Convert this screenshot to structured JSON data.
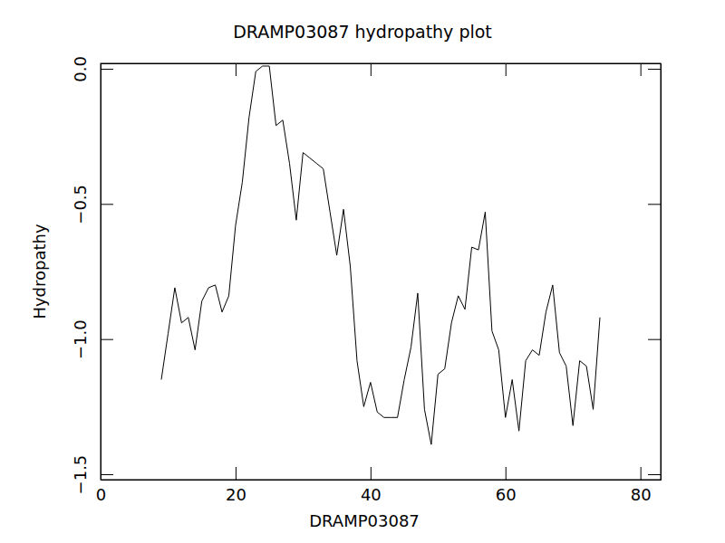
{
  "chart_data": {
    "type": "line",
    "title": "DRAMP03087 hydropathy plot",
    "x_label": "DRAMP03087",
    "y_label": "Hydropathy",
    "color": "#000000",
    "x": [
      9,
      10,
      11,
      12,
      13,
      14,
      15,
      16,
      17,
      18,
      19,
      20,
      21,
      22,
      23,
      24,
      25,
      26,
      27,
      28,
      29,
      30,
      31,
      32,
      33,
      34,
      35,
      36,
      37,
      38,
      39,
      40,
      41,
      42,
      43,
      44,
      45,
      46,
      47,
      48,
      49,
      50,
      51,
      52,
      53,
      54,
      55,
      56,
      57,
      58,
      59,
      60,
      61,
      62,
      63,
      64,
      65,
      66,
      67,
      68,
      69,
      70,
      71,
      72,
      73,
      74
    ],
    "values": [
      -1.15,
      -0.98,
      -0.81,
      -0.94,
      -0.92,
      -1.04,
      -0.86,
      -0.81,
      -0.8,
      -0.9,
      -0.84,
      -0.58,
      -0.42,
      -0.18,
      -0.01,
      0.01,
      0.01,
      -0.21,
      -0.19,
      -0.35,
      -0.56,
      -0.31,
      -0.33,
      -0.35,
      -0.37,
      -0.53,
      -0.69,
      -0.52,
      -0.73,
      -1.08,
      -1.25,
      -1.16,
      -1.27,
      -1.29,
      -1.29,
      -1.29,
      -1.15,
      -1.03,
      -0.83,
      -1.26,
      -1.39,
      -1.13,
      -1.11,
      -0.94,
      -0.84,
      -0.89,
      -0.66,
      -0.67,
      -0.53,
      -0.97,
      -1.04,
      -1.29,
      -1.15,
      -1.34,
      -1.08,
      -1.04,
      -1.06,
      -0.9,
      -0.8,
      -1.05,
      -1.1,
      -1.32,
      -1.08,
      -1.1,
      -1.26,
      -0.92
    ],
    "xlim": [
      0,
      83
    ],
    "ylim": [
      -1.52,
      0.02
    ],
    "xticks": [
      0,
      20,
      40,
      60,
      80
    ],
    "yticks": [
      {
        "value": 0,
        "label": "0.0"
      },
      {
        "value": -0.5,
        "label": "−0.5"
      },
      {
        "value": -1,
        "label": "−1.0"
      },
      {
        "value": -1.5,
        "label": "−1.5"
      }
    ],
    "grid": false
  }
}
